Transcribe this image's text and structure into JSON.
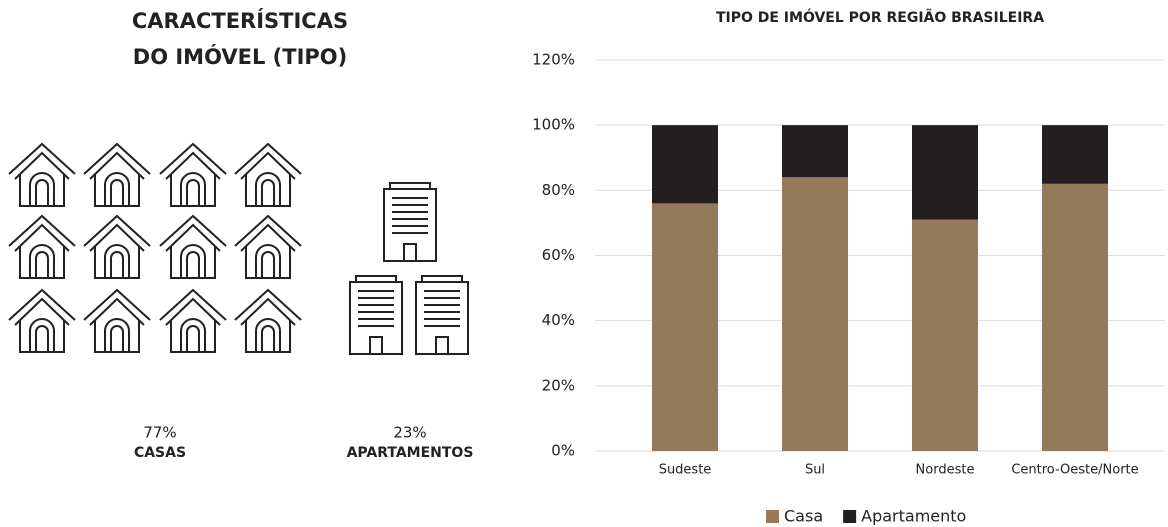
{
  "infographic": {
    "title": [
      "CARACTERÍSTICAS",
      "DO IMÓVEL (TIPO)"
    ],
    "items": [
      {
        "percent": "77%",
        "label": "CASAS"
      },
      {
        "percent": "23%",
        "label": "APARTAMENTOS"
      }
    ]
  },
  "chart_data": {
    "type": "bar",
    "stacked": true,
    "title": "TIPO DE IMÓVEL POR REGIÃO BRASILEIRA",
    "categories": [
      "Sudeste",
      "Sul",
      "Nordeste",
      "Centro-Oeste/Norte"
    ],
    "series": [
      {
        "name": "Casa",
        "color": "#94795b",
        "values": [
          76,
          84,
          71,
          82
        ]
      },
      {
        "name": "Apartamento",
        "color": "#231f20",
        "values": [
          24,
          16,
          29,
          18
        ]
      }
    ],
    "ylim": [
      0,
      120
    ],
    "yticks": [
      {
        "value": 0,
        "label": "0%"
      },
      {
        "value": 20,
        "label": "20%"
      },
      {
        "value": 40,
        "label": "40%"
      },
      {
        "value": 60,
        "label": "60%"
      },
      {
        "value": 80,
        "label": "80%"
      },
      {
        "value": 100,
        "label": "100%"
      },
      {
        "value": 120,
        "label": "120%"
      }
    ],
    "grid": true,
    "legend": "bottom"
  }
}
